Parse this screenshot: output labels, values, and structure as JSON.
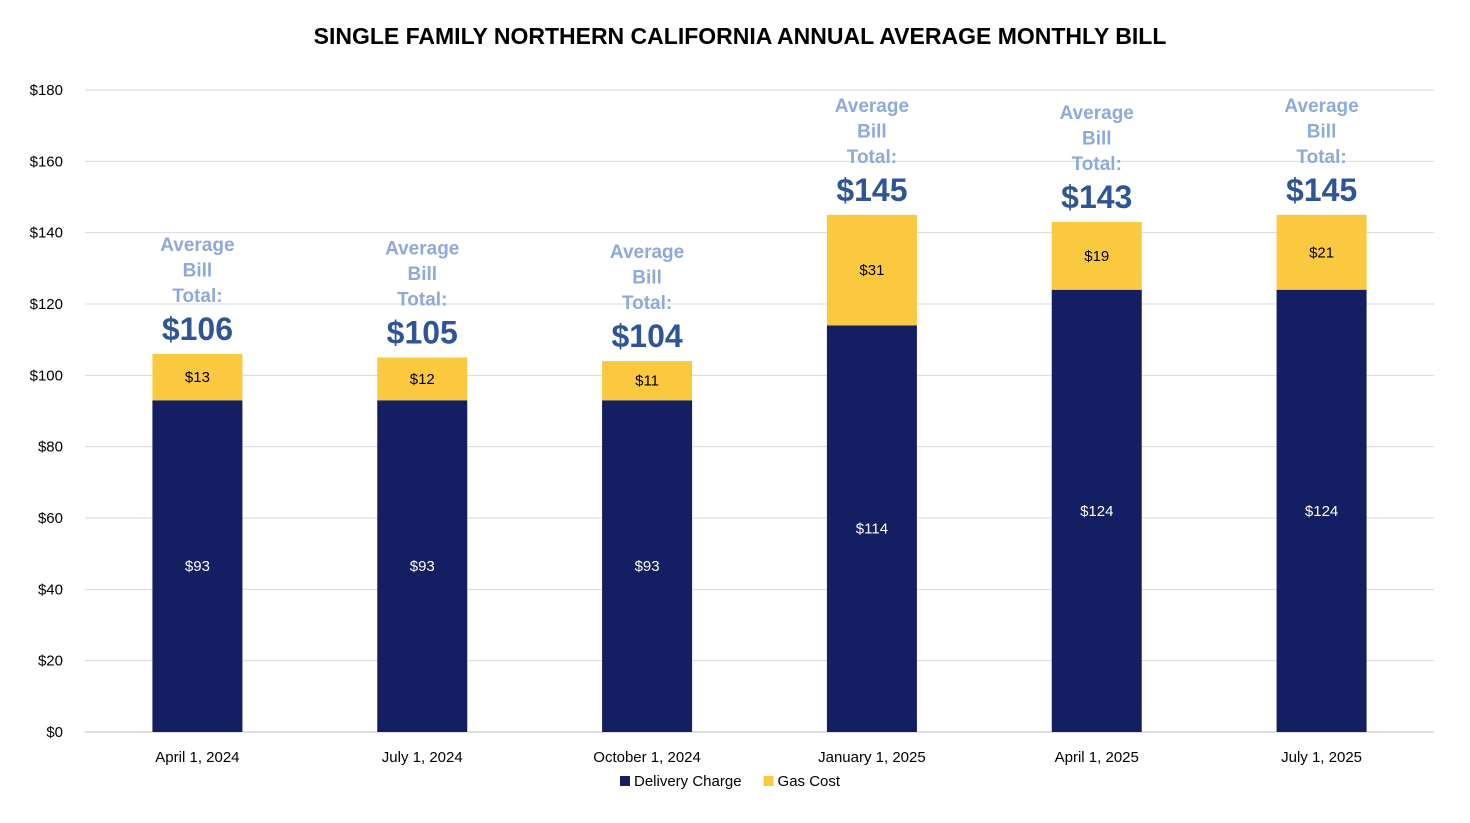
{
  "chart_data": {
    "type": "bar",
    "stacked": true,
    "title": "SINGLE FAMILY NORTHERN CALIFORNIA ANNUAL AVERAGE MONTHLY BILL",
    "categories": [
      "April 1, 2024",
      "July 1, 2024",
      "October 1, 2024",
      "January 1, 2025",
      "April 1, 2025",
      "July 1, 2025"
    ],
    "series": [
      {
        "name": "Delivery Charge",
        "color": "#131e63",
        "label_color": "#ffffff",
        "values": [
          93,
          93,
          93,
          114,
          124,
          124
        ],
        "labels": [
          "$93",
          "$93",
          "$93",
          "$114",
          "$124",
          "$124"
        ]
      },
      {
        "name": "Gas Cost",
        "color": "#fbc93f",
        "label_color": "#000000",
        "values": [
          13,
          12,
          11,
          31,
          19,
          21
        ],
        "labels": [
          "$13",
          "$12",
          "$11",
          "$31",
          "$19",
          "$21"
        ]
      }
    ],
    "yaxis": {
      "min": 0,
      "max": 180,
      "step": 20,
      "tick_labels": [
        "$0",
        "$20",
        "$40",
        "$60",
        "$80",
        "$100",
        "$120",
        "$140",
        "$160",
        "$180"
      ]
    },
    "annotations": {
      "lines": [
        "Average",
        "Bill",
        "Total:"
      ],
      "line_color": "#8eaadb",
      "total_color": "#2f5597",
      "totals": [
        "$106",
        "$105",
        "$104",
        "$145",
        "$143",
        "$145"
      ],
      "total_values": [
        106,
        105,
        104,
        145,
        143,
        145
      ]
    },
    "grid": true,
    "gridline_color": "#d9d9d9",
    "legend_position": "bottom"
  }
}
